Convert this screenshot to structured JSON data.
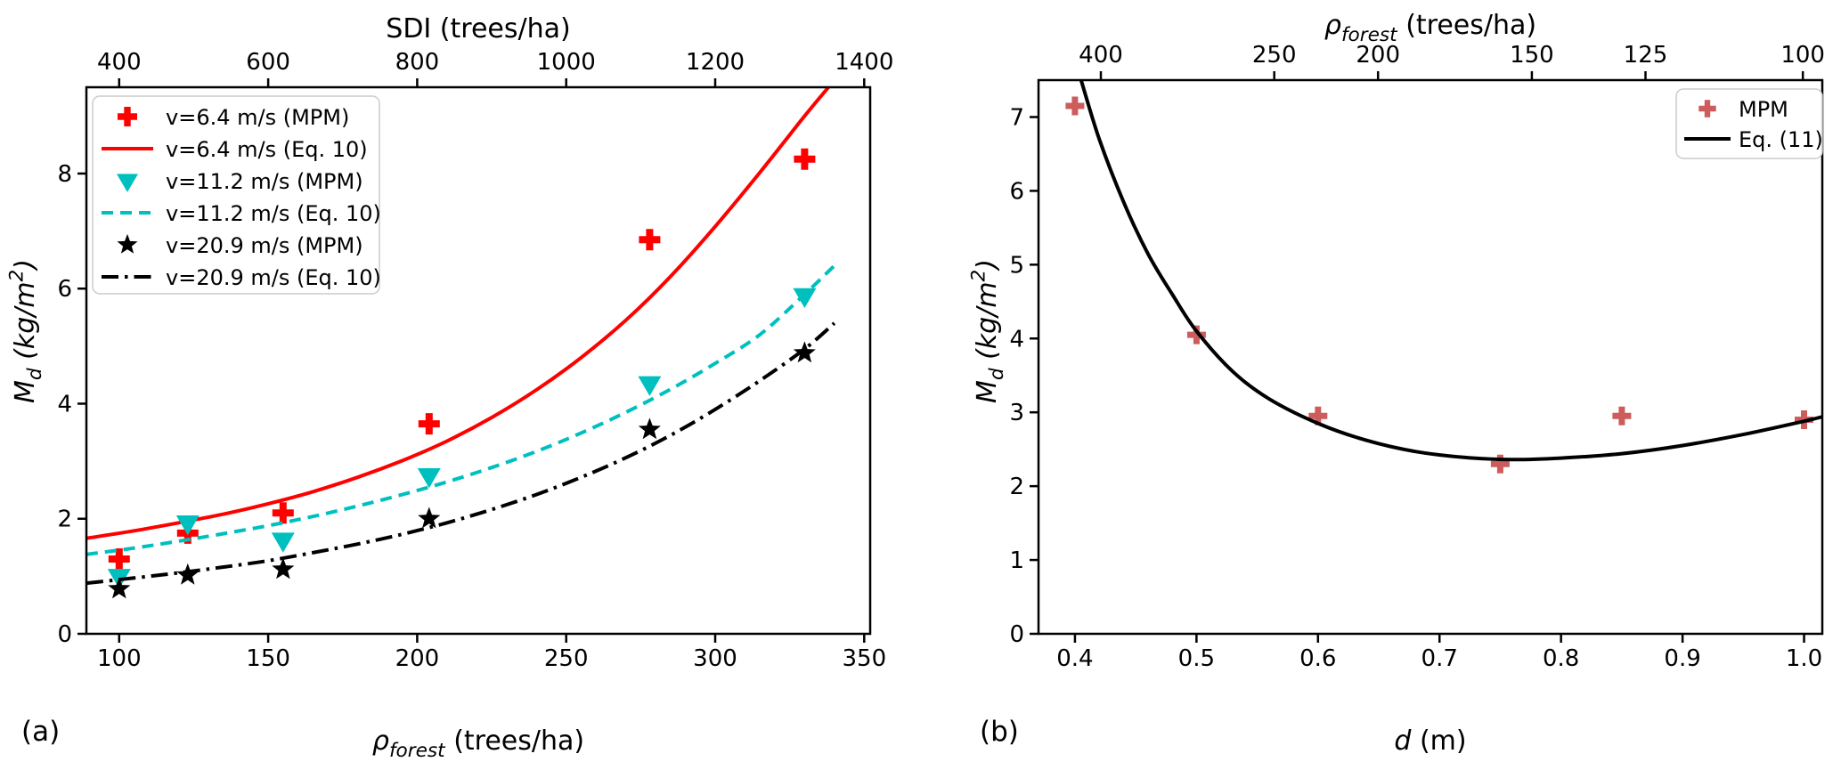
{
  "figure": {
    "background": "#ffffff",
    "axis_color": "#000000",
    "panel_a_label": "(a)",
    "panel_b_label": "(b)"
  },
  "chart_data": [
    {
      "id": "a",
      "type": "scatter",
      "top_axis_title_segments": [
        {
          "t": "SDI (trees/ha)",
          "i": false
        }
      ],
      "xlabel_segments": [
        {
          "t": "ρ",
          "i": true
        },
        {
          "t": "forest",
          "i": true,
          "pos": "sub"
        },
        {
          "t": " (trees/ha)",
          "i": false
        }
      ],
      "ylabel_segments": [
        {
          "t": "M",
          "i": true
        },
        {
          "t": "d",
          "i": true,
          "pos": "sub"
        },
        {
          "t": "  (kg/m",
          "i": true
        },
        {
          "t": "2",
          "i": true,
          "pos": "sup"
        },
        {
          "t": ")",
          "i": true
        }
      ],
      "xlim": [
        89,
        352
      ],
      "ylim": [
        0,
        9.5
      ],
      "x_ticks": [
        100,
        150,
        200,
        250,
        300,
        350
      ],
      "x_tick_labels": [
        "100",
        "150",
        "200",
        "250",
        "300",
        "350"
      ],
      "y_ticks": [
        0,
        2,
        4,
        6,
        8
      ],
      "y_tick_labels": [
        "0",
        "2",
        "4",
        "6",
        "8"
      ],
      "top_ticks": [
        {
          "label": "400",
          "x": 100
        },
        {
          "label": "600",
          "x": 150
        },
        {
          "label": "800",
          "x": 200
        },
        {
          "label": "1000",
          "x": 250
        },
        {
          "label": "1200",
          "x": 300
        },
        {
          "label": "1400",
          "x": 350
        }
      ],
      "series": [
        {
          "label": "v=6.4 m/s (MPM)",
          "kind": "scatter",
          "marker": "plus",
          "color": "#ff0000",
          "x": [
            100,
            123,
            155,
            204,
            278,
            330
          ],
          "y": [
            1.3,
            1.75,
            2.1,
            3.65,
            6.85,
            8.25
          ]
        },
        {
          "label": "v=6.4 m/s (Eq. 10)",
          "kind": "line",
          "dash": "solid",
          "color": "#ff0000",
          "x": [
            89,
            105,
            120,
            135,
            150,
            165,
            180,
            195,
            210,
            225,
            240,
            255,
            270,
            285,
            300,
            315,
            330,
            338
          ],
          "y": [
            1.66,
            1.79,
            1.93,
            2.08,
            2.26,
            2.47,
            2.72,
            3.01,
            3.35,
            3.76,
            4.24,
            4.8,
            5.45,
            6.21,
            7.08,
            8.02,
            9.0,
            9.5
          ]
        },
        {
          "label": "v=11.2 m/s (MPM)",
          "kind": "scatter",
          "marker": "triangle-down",
          "color": "#00bfbf",
          "x": [
            100,
            123,
            155,
            204,
            278,
            330
          ],
          "y": [
            1.0,
            1.93,
            1.63,
            2.75,
            4.35,
            5.88
          ]
        },
        {
          "label": "v=11.2 m/s (Eq. 10)",
          "kind": "line",
          "dash": "dashed",
          "color": "#00bfbf",
          "x": [
            89,
            105,
            120,
            135,
            150,
            165,
            180,
            195,
            210,
            225,
            240,
            255,
            270,
            285,
            300,
            315,
            330,
            340
          ],
          "y": [
            1.38,
            1.49,
            1.61,
            1.74,
            1.88,
            2.04,
            2.22,
            2.42,
            2.64,
            2.89,
            3.17,
            3.49,
            3.85,
            4.25,
            4.7,
            5.2,
            5.9,
            6.4
          ]
        },
        {
          "label": "v=20.9 m/s (MPM)",
          "kind": "scatter",
          "marker": "star",
          "color": "#000000",
          "x": [
            100,
            123,
            155,
            204,
            278,
            330
          ],
          "y": [
            0.78,
            1.02,
            1.12,
            2.0,
            3.55,
            4.88
          ]
        },
        {
          "label": "v=20.9 m/s (Eq. 10)",
          "kind": "line",
          "dash": "dashdot",
          "color": "#000000",
          "x": [
            89,
            105,
            120,
            135,
            150,
            165,
            180,
            195,
            210,
            225,
            240,
            255,
            270,
            285,
            300,
            315,
            330,
            340
          ],
          "y": [
            0.88,
            0.97,
            1.06,
            1.16,
            1.27,
            1.41,
            1.56,
            1.73,
            1.93,
            2.16,
            2.42,
            2.72,
            3.06,
            3.45,
            3.9,
            4.4,
            4.95,
            5.4
          ]
        }
      ],
      "legend": {
        "position": "upper-left"
      }
    },
    {
      "id": "b",
      "type": "scatter",
      "top_axis_title_segments": [
        {
          "t": "ρ",
          "i": true
        },
        {
          "t": "forest",
          "i": true,
          "pos": "sub"
        },
        {
          "t": " (trees/ha)",
          "i": false
        }
      ],
      "xlabel_segments": [
        {
          "t": "d",
          "i": true
        },
        {
          "t": " (m)",
          "i": false
        }
      ],
      "ylabel_segments": [
        {
          "t": "M",
          "i": true
        },
        {
          "t": "d",
          "i": true,
          "pos": "sub"
        },
        {
          "t": "  (kg/m",
          "i": true
        },
        {
          "t": "2",
          "i": true,
          "pos": "sup"
        },
        {
          "t": ")",
          "i": true
        }
      ],
      "xlim": [
        0.37,
        1.015
      ],
      "ylim": [
        0,
        7.5
      ],
      "x_ticks": [
        0.4,
        0.5,
        0.6,
        0.7,
        0.8,
        0.9,
        1.0
      ],
      "x_tick_labels": [
        "0.4",
        "0.5",
        "0.6",
        "0.7",
        "0.8",
        "0.9",
        "1.0"
      ],
      "y_ticks": [
        0,
        1,
        2,
        3,
        4,
        5,
        6,
        7
      ],
      "y_tick_labels": [
        "0",
        "1",
        "2",
        "3",
        "4",
        "5",
        "6",
        "7"
      ],
      "top_ticks": [
        {
          "label": "400",
          "x": 0.4213
        },
        {
          "label": "250",
          "x": 0.564
        },
        {
          "label": "200",
          "x": 0.6494
        },
        {
          "label": "150",
          "x": 0.776
        },
        {
          "label": "125",
          "x": 0.8695
        },
        {
          "label": "100",
          "x": 0.999
        }
      ],
      "series": [
        {
          "label": "MPM",
          "kind": "scatter",
          "marker": "plus",
          "color": "#cd5c5c",
          "x": [
            0.4,
            0.5,
            0.6,
            0.75,
            0.85,
            1.0
          ],
          "y": [
            7.15,
            4.05,
            2.95,
            2.3,
            2.95,
            2.9
          ]
        },
        {
          "label": "Eq. (11)",
          "kind": "line",
          "dash": "solid",
          "color": "#000000",
          "x": [
            0.405,
            0.42,
            0.44,
            0.46,
            0.48,
            0.5,
            0.53,
            0.56,
            0.6,
            0.64,
            0.68,
            0.72,
            0.76,
            0.8,
            0.85,
            0.9,
            0.95,
            1.0,
            1.015
          ],
          "y": [
            7.5,
            6.7,
            5.85,
            5.15,
            4.6,
            4.1,
            3.55,
            3.18,
            2.85,
            2.62,
            2.47,
            2.39,
            2.36,
            2.38,
            2.44,
            2.55,
            2.7,
            2.88,
            2.94
          ]
        }
      ],
      "legend": {
        "position": "upper-right"
      }
    }
  ]
}
